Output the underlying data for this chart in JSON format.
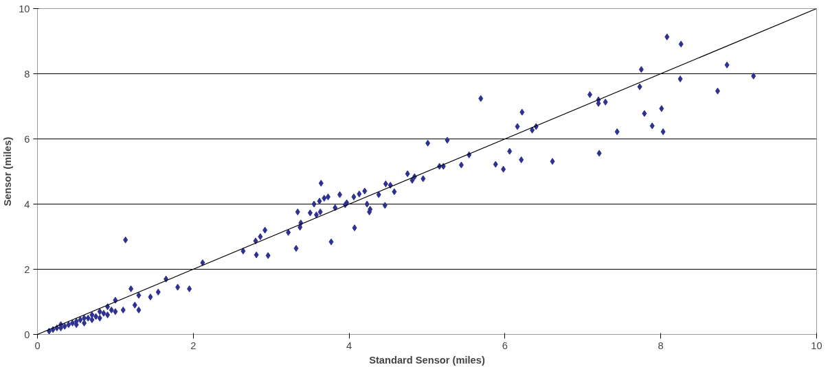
{
  "chart_data": {
    "type": "scatter",
    "xlabel": "Standard Sensor (miles)",
    "ylabel": "Sensor (miles)",
    "xlim": [
      0,
      10
    ],
    "ylim": [
      0,
      10
    ],
    "xticks": [
      0,
      2,
      4,
      6,
      8,
      10
    ],
    "yticks": [
      0,
      2,
      4,
      6,
      8,
      10
    ],
    "grid": "y",
    "series": [
      {
        "marker": "diamond",
        "color": "#2e3192",
        "x": [
          0.15,
          0.2,
          0.25,
          0.3,
          0.3,
          0.35,
          0.4,
          0.45,
          0.5,
          0.5,
          0.55,
          0.6,
          0.6,
          0.65,
          0.7,
          0.7,
          0.75,
          0.8,
          0.8,
          0.85,
          0.9,
          0.9,
          0.95,
          1.0,
          1.0,
          1.1,
          1.13,
          1.2,
          1.25,
          1.3,
          1.3,
          1.45,
          1.55,
          1.65,
          1.8,
          1.95,
          2.12,
          2.64,
          2.8,
          2.81,
          2.86,
          2.92,
          2.96,
          3.22,
          3.32,
          3.34,
          3.37,
          3.38,
          3.5,
          3.55,
          3.64,
          3.58,
          3.62,
          3.63,
          3.68,
          3.73,
          3.77,
          3.82,
          3.88,
          3.95,
          3.97,
          4.07,
          4.06,
          4.13,
          4.2,
          4.23,
          4.27,
          4.26,
          4.38,
          4.46,
          4.47,
          4.53,
          4.58,
          4.75,
          4.81,
          4.84,
          4.95,
          5.01,
          5.16,
          5.21,
          5.26,
          5.44,
          5.54,
          5.69,
          5.88,
          5.98,
          6.06,
          6.16,
          6.21,
          6.22,
          6.35,
          6.4,
          6.61,
          7.09,
          7.2,
          7.2,
          7.21,
          7.29,
          7.44,
          7.73,
          7.75,
          7.79,
          7.89,
          8.01,
          8.03,
          8.08,
          8.26,
          8.25,
          8.73,
          8.85,
          9.19
        ],
        "values": [
          0.1,
          0.15,
          0.2,
          0.3,
          0.2,
          0.25,
          0.3,
          0.35,
          0.3,
          0.4,
          0.45,
          0.5,
          0.35,
          0.5,
          0.45,
          0.6,
          0.55,
          0.7,
          0.5,
          0.65,
          0.85,
          0.6,
          0.75,
          1.05,
          0.7,
          0.75,
          2.9,
          1.4,
          0.9,
          1.2,
          0.75,
          1.15,
          1.3,
          1.7,
          1.45,
          1.4,
          2.2,
          2.56,
          2.87,
          2.44,
          3.0,
          3.2,
          2.42,
          3.13,
          2.64,
          3.76,
          3.29,
          3.42,
          3.73,
          4.0,
          4.64,
          3.67,
          4.09,
          3.76,
          4.18,
          4.22,
          2.84,
          3.89,
          4.29,
          3.98,
          4.04,
          3.27,
          4.22,
          4.31,
          4.4,
          4.0,
          3.84,
          3.76,
          4.29,
          3.96,
          4.62,
          4.58,
          4.38,
          4.93,
          4.73,
          4.84,
          4.78,
          5.87,
          5.16,
          5.16,
          5.96,
          5.2,
          5.51,
          7.24,
          5.22,
          5.07,
          5.62,
          6.38,
          5.36,
          6.82,
          6.27,
          6.38,
          5.31,
          7.36,
          7.2,
          7.09,
          5.56,
          7.13,
          6.22,
          7.6,
          8.13,
          6.78,
          6.4,
          6.93,
          6.22,
          9.13,
          8.91,
          7.84,
          7.47,
          8.27,
          7.93
        ]
      },
      {
        "type": "line",
        "marker": "none",
        "color": "#000000",
        "x": [
          0,
          10
        ],
        "values": [
          0,
          10
        ]
      }
    ]
  }
}
